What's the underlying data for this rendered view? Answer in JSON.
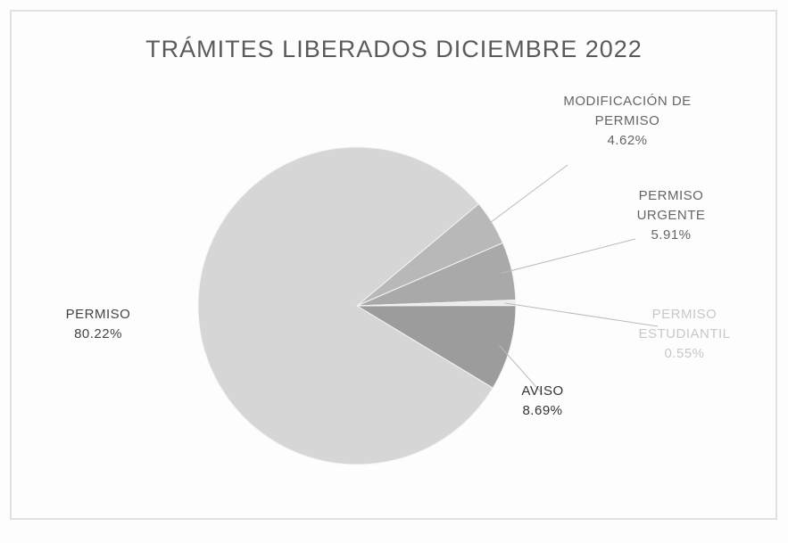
{
  "chart_data": {
    "type": "pie",
    "title": "TRÁMITES LIBERADOS DICIEMBRE 2022",
    "categories": [
      "MODIFICACIÓN DE PERMISO",
      "PERMISO URGENTE",
      "PERMISO ESTUDIANTIL",
      "AVISO",
      "PERMISO"
    ],
    "values": [
      4.62,
      5.91,
      0.55,
      8.69,
      80.22
    ],
    "value_labels": [
      "4.62%",
      "5.91%",
      "0.55%",
      "8.69%",
      "80.22%"
    ],
    "colors": [
      "#b8b8b8",
      "#a9a9a9",
      "#ebebeb",
      "#9c9c9c",
      "#d6d6d6"
    ]
  }
}
